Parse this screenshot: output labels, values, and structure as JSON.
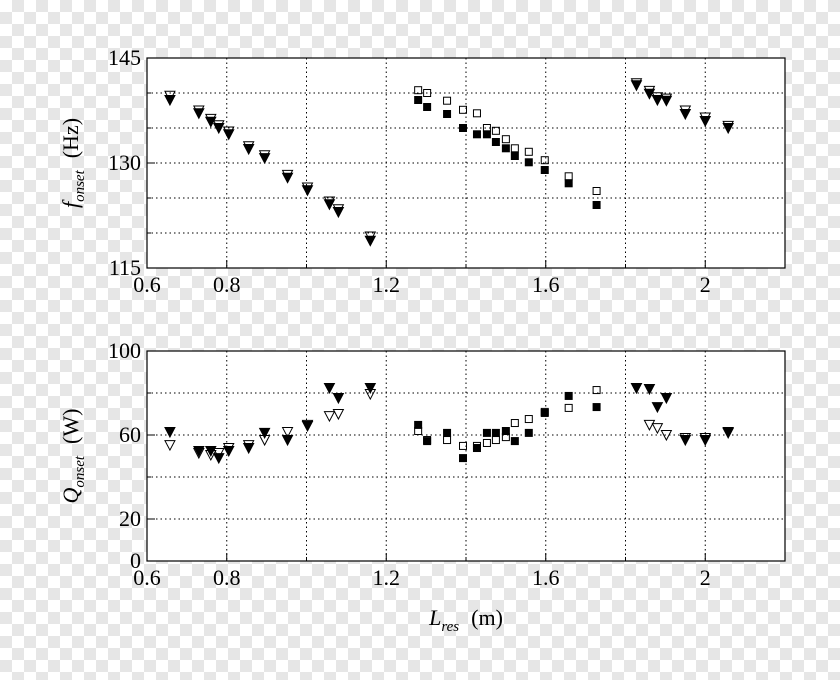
{
  "chart_data": [
    {
      "type": "scatter",
      "ylabel": "f",
      "ylabel_sub": "onset",
      "ylabel_unit": "(Hz)",
      "xlim": [
        0.6,
        2.2
      ],
      "xticks": [
        0.6,
        0.8,
        1.2,
        1.6,
        2
      ],
      "minor_xticks": [
        1.0,
        1.4,
        1.8
      ],
      "ylim": [
        115,
        145
      ],
      "yticks": [
        115,
        130,
        145
      ],
      "minor_yticks": [
        120,
        125,
        135,
        140
      ],
      "grid": true,
      "series": [
        {
          "marker": "triangle",
          "filled": false,
          "color": "#000000",
          "x": [
            0.6575,
            0.73,
            0.76,
            0.78,
            0.805,
            0.855,
            0.895,
            0.9525,
            1.0025,
            1.0575,
            1.08,
            1.16,
            1.8275,
            1.86,
            1.88,
            1.9025,
            1.95,
            2.0,
            2.0575
          ],
          "values": [
            139.6,
            137.5,
            136.3,
            135.4,
            134.5,
            132.4,
            131.1,
            128.3,
            126.5,
            124.5,
            123.4,
            119.5,
            141.4,
            140.3,
            139.4,
            139.2,
            137.5,
            136.5,
            135.3
          ]
        },
        {
          "marker": "triangle",
          "filled": true,
          "color": "#000000",
          "x": [
            0.6575,
            0.73,
            0.76,
            0.78,
            0.805,
            0.855,
            0.895,
            0.9525,
            1.0025,
            1.0575,
            1.08,
            1.16,
            1.8275,
            1.86,
            1.88,
            1.9025,
            1.95,
            2.0,
            2.0575
          ],
          "values": [
            139,
            137.1,
            135.9,
            135,
            134.1,
            132,
            130.7,
            127.9,
            126.1,
            124.1,
            123,
            118.9,
            141.1,
            139.9,
            139,
            138.9,
            137,
            136,
            135
          ]
        },
        {
          "marker": "square",
          "filled": false,
          "color": "#000000",
          "x": [
            1.28,
            1.3025,
            1.3525,
            1.3925,
            1.4275,
            1.4525,
            1.475,
            1.5,
            1.5225,
            1.5575,
            1.5975,
            1.6575,
            1.7275
          ],
          "values": [
            140.4,
            140,
            138.9,
            137.6,
            137.1,
            135,
            134.6,
            133.4,
            132.1,
            131.6,
            130.4,
            128.1,
            126
          ]
        },
        {
          "marker": "square",
          "filled": true,
          "color": "#000000",
          "x": [
            1.28,
            1.3025,
            1.3525,
            1.3925,
            1.4275,
            1.4525,
            1.475,
            1.5,
            1.5225,
            1.5575,
            1.5975,
            1.6575,
            1.7275
          ],
          "values": [
            139,
            138,
            137,
            135,
            134.1,
            134.1,
            133,
            132.1,
            131,
            130.1,
            129,
            127.1,
            124
          ]
        }
      ]
    },
    {
      "type": "scatter",
      "ylabel": "Q",
      "ylabel_sub": "onset",
      "ylabel_unit": "(W)",
      "xlabel": "L",
      "xlabel_sub": "res",
      "xlabel_unit": "(m)",
      "xlim": [
        0.6,
        2.2
      ],
      "xticks": [
        0.6,
        0.8,
        1.2,
        1.6,
        2
      ],
      "minor_xticks": [
        1.0,
        1.4,
        1.8
      ],
      "ylim": [
        0,
        100
      ],
      "yticks": [
        0,
        20,
        60,
        100
      ],
      "minor_yticks": [
        40,
        80
      ],
      "grid": true,
      "series": [
        {
          "marker": "triangle",
          "filled": false,
          "color": "#000000",
          "x": [
            0.6575,
            0.73,
            0.76,
            0.78,
            0.805,
            0.855,
            0.895,
            0.9525,
            1.0025,
            1.0575,
            1.08,
            1.16,
            1.8275,
            1.86,
            1.88,
            1.9025,
            1.95,
            2.0,
            2.0575
          ],
          "values": [
            55.2,
            51.4,
            50.5,
            51.4,
            53.8,
            55.2,
            57.6,
            61.4,
            64.8,
            69,
            70,
            79.5,
            82.4,
            64.8,
            63.3,
            60,
            58.6,
            58.6,
            61.4
          ]
        },
        {
          "marker": "triangle",
          "filled": true,
          "color": "#000000",
          "x": [
            0.6575,
            0.73,
            0.76,
            0.78,
            0.805,
            0.855,
            0.895,
            0.9525,
            1.0025,
            1.0575,
            1.08,
            1.16,
            1.8275,
            1.86,
            1.88,
            1.9025,
            1.95,
            2.0,
            2.0575
          ],
          "values": [
            61.4,
            52.4,
            52.4,
            49,
            52.4,
            53.8,
            61,
            57.6,
            64.3,
            82.4,
            77.6,
            82.4,
            82.4,
            81.9,
            73.3,
            77.6,
            57.6,
            57.6,
            61
          ]
        },
        {
          "marker": "square",
          "filled": false,
          "color": "#000000",
          "x": [
            1.28,
            1.3025,
            1.3525,
            1.3925,
            1.4275,
            1.4525,
            1.475,
            1.5,
            1.5225,
            1.5575,
            1.5975,
            1.6575,
            1.7275
          ],
          "values": [
            61.9,
            57.6,
            57.6,
            54.8,
            54.8,
            56.2,
            57.6,
            59,
            65.7,
            67.6,
            71,
            72.9,
            81.4
          ]
        },
        {
          "marker": "square",
          "filled": true,
          "color": "#000000",
          "x": [
            1.28,
            1.3025,
            1.3525,
            1.3925,
            1.4275,
            1.4525,
            1.475,
            1.5,
            1.5225,
            1.5575,
            1.5975,
            1.6575,
            1.7275
          ],
          "values": [
            64.8,
            57.1,
            61,
            49,
            53.8,
            61,
            61,
            61.9,
            57.1,
            61,
            70.5,
            78.6,
            73.3
          ]
        }
      ]
    }
  ]
}
